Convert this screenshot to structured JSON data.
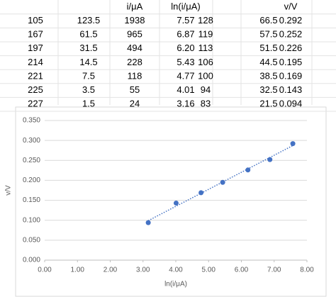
{
  "table": {
    "header": [
      null,
      null,
      "i/μA",
      "ln(i/μA)",
      null,
      null,
      "v/V"
    ],
    "rows": [
      [
        "105",
        "123.5",
        "1938",
        "7.57",
        "128",
        "66.5",
        "0.292"
      ],
      [
        "167",
        "61.5",
        "965",
        "6.87",
        "119",
        "57.5",
        "0.252"
      ],
      [
        "197",
        "31.5",
        "494",
        "6.20",
        "113",
        "51.5",
        "0.226"
      ],
      [
        "214",
        "14.5",
        "228",
        "5.43",
        "106",
        "44.5",
        "0.195"
      ],
      [
        "221",
        "7.5",
        "118",
        "4.77",
        "100",
        "38.5",
        "0.169"
      ],
      [
        "225",
        "3.5",
        "55",
        "4.01",
        "94",
        "32.5",
        "0.143"
      ],
      [
        "227",
        "1.5",
        "24",
        "3.16",
        "83",
        "21.5",
        "0.094"
      ]
    ]
  },
  "chart_data": {
    "type": "scatter",
    "x_label": "ln(i/μA)",
    "y_label": "v/V",
    "x": [
      7.57,
      6.87,
      6.2,
      5.43,
      4.77,
      4.01,
      3.16
    ],
    "values": [
      0.292,
      0.252,
      0.226,
      0.195,
      0.169,
      0.143,
      0.094
    ],
    "color": "#4472c4",
    "trendline": true,
    "grid": true,
    "xlim": [
      0,
      8
    ],
    "xticks": [
      {
        "value": 0,
        "label": "0.00"
      },
      {
        "value": 1,
        "label": "1.00"
      },
      {
        "value": 2,
        "label": "2.00"
      },
      {
        "value": 3,
        "label": "3.00"
      },
      {
        "value": 4,
        "label": "4.00"
      },
      {
        "value": 5,
        "label": "5.00"
      },
      {
        "value": 6,
        "label": "6.00"
      },
      {
        "value": 7,
        "label": "7.00"
      },
      {
        "value": 8,
        "label": "8.00"
      }
    ],
    "ylim": [
      0,
      0.35
    ],
    "yticks": [
      {
        "value": 0,
        "label": "0.000"
      },
      {
        "value": 0.05,
        "label": "0.050"
      },
      {
        "value": 0.1,
        "label": "0.100"
      },
      {
        "value": 0.15,
        "label": "0.150"
      },
      {
        "value": 0.2,
        "label": "0.200"
      },
      {
        "value": 0.25,
        "label": "0.250"
      },
      {
        "value": 0.3,
        "label": "0.300"
      },
      {
        "value": 0.35,
        "label": "0.350"
      }
    ]
  }
}
